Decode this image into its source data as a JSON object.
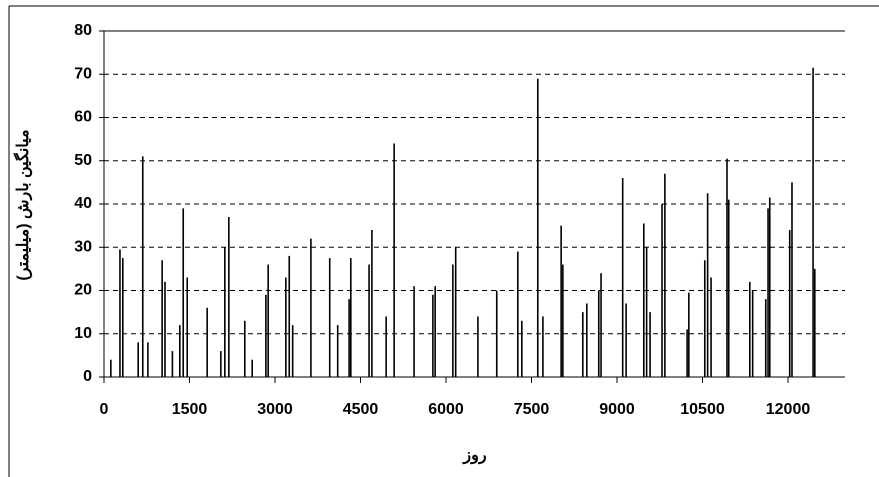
{
  "chart_data": {
    "type": "spike",
    "x_label": "روز",
    "y_label": "میانگین بارش (میلیمتر)",
    "color": "#000000",
    "x": [
      120,
      280,
      330,
      600,
      680,
      770,
      1020,
      1070,
      1200,
      1330,
      1390,
      1460,
      1810,
      2050,
      2120,
      2190,
      2470,
      2600,
      2840,
      2880,
      3190,
      3250,
      3310,
      3630,
      3960,
      4100,
      4300,
      4330,
      4650,
      4700,
      4950,
      5090,
      5440,
      5770,
      5810,
      6120,
      6170,
      6560,
      6890,
      7260,
      7330,
      7610,
      7700,
      8020,
      8050,
      8400,
      8470,
      8680,
      8720,
      9100,
      9160,
      9470,
      9520,
      9580,
      9790,
      9840,
      10230,
      10260,
      10540,
      10590,
      10650,
      10930,
      10960,
      11330,
      11380,
      11610,
      11650,
      11680,
      12030,
      12070,
      12440,
      12470
    ],
    "values": [
      4,
      29.5,
      27.5,
      8,
      51,
      8,
      27,
      22,
      6,
      12,
      39,
      23,
      16,
      6,
      30,
      37,
      13,
      4,
      19,
      26,
      23,
      28,
      12,
      32,
      27.5,
      12,
      18,
      27.5,
      26,
      34,
      14,
      54,
      21,
      19,
      21,
      26,
      30,
      14,
      20,
      29,
      13,
      69,
      14,
      35,
      26,
      15,
      17,
      20,
      24,
      46,
      17,
      35.5,
      30,
      15,
      40,
      47,
      11,
      19.5,
      27,
      42.5,
      23,
      50.5,
      41,
      22,
      20,
      18,
      39,
      41.5,
      34,
      45,
      71.5,
      25
    ],
    "xlim": [
      0,
      13000
    ],
    "xticks": [
      0,
      1500,
      3000,
      4500,
      6000,
      7500,
      9000,
      10500,
      12000
    ],
    "ylim": [
      0,
      80
    ],
    "yticks": [
      0,
      10,
      20,
      30,
      40,
      50,
      60,
      70,
      80
    ],
    "grid": true
  }
}
